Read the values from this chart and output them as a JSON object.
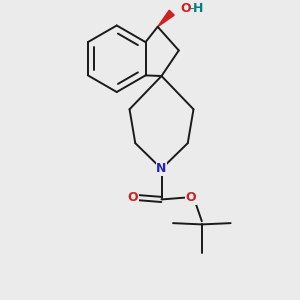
{
  "background_color": "#ebebeb",
  "bond_color": "#1a1a1a",
  "N_color": "#2222cc",
  "O_color": "#cc2222",
  "teal_color": "#008080",
  "figsize": [
    3.0,
    3.0
  ],
  "dpi": 100,
  "xlim": [
    -1.6,
    1.8
  ],
  "ylim": [
    -2.2,
    2.4
  ]
}
